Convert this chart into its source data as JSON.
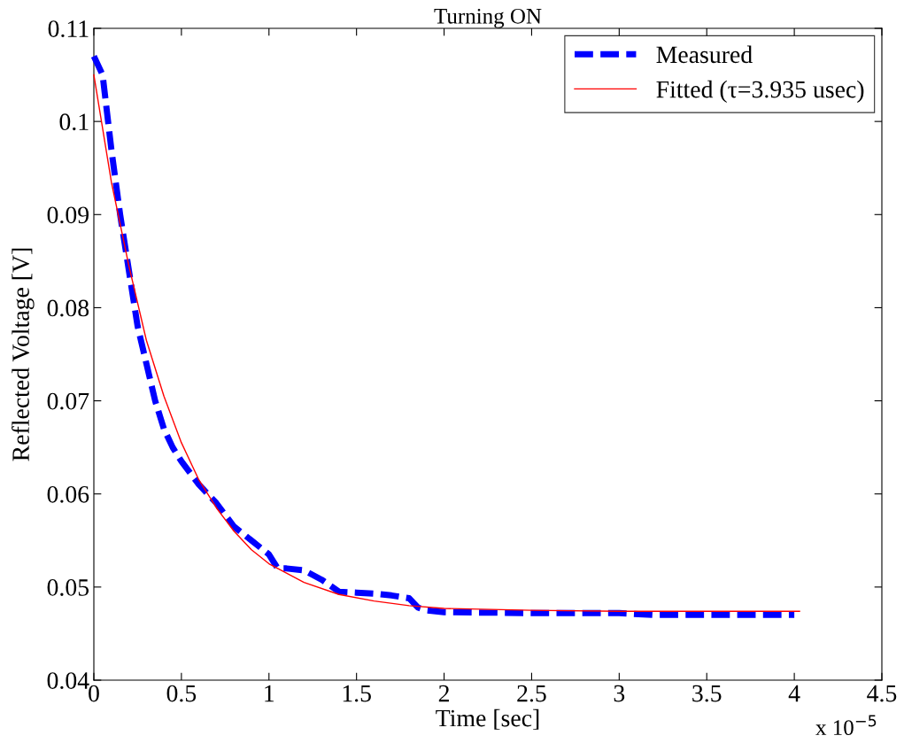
{
  "chart_data": {
    "type": "line",
    "title": "Turning ON",
    "xlabel": "Time [sec]",
    "ylabel": "Reflected Voltage [V]",
    "annotations": [
      "x 10$^{−5}$"
    ],
    "xlim": [
      0,
      4.5
    ],
    "xticks": [
      0,
      0.5,
      1,
      1.5,
      2,
      2.5,
      3,
      3.5,
      4,
      4.5
    ],
    "ylim": [
      0.04,
      0.11
    ],
    "yticks": [
      0.04,
      0.05,
      0.06,
      0.07,
      0.08,
      0.09,
      0.1,
      0.11
    ],
    "grid": false,
    "legend": "top right",
    "series": [
      {
        "name": "Measured",
        "color": "#0000ff",
        "line_style": "dashed",
        "x": [
          0,
          0.05,
          0.1,
          0.15,
          0.2,
          0.25,
          0.3,
          0.35,
          0.4,
          0.45,
          0.5,
          0.6,
          0.7,
          0.8,
          0.9,
          1.0,
          1.05,
          1.1,
          1.2,
          1.3,
          1.4,
          1.5,
          1.6,
          1.7,
          1.8,
          1.85,
          1.9,
          2.0,
          2.5,
          3.0,
          3.2,
          3.5,
          4.0
        ],
        "values": [
          0.107,
          0.105,
          0.097,
          0.09,
          0.084,
          0.078,
          0.074,
          0.07,
          0.067,
          0.065,
          0.0635,
          0.061,
          0.059,
          0.0565,
          0.055,
          0.0535,
          0.052,
          0.052,
          0.0518,
          0.0508,
          0.0495,
          0.0494,
          0.0493,
          0.0491,
          0.0488,
          0.0478,
          0.0475,
          0.0473,
          0.0472,
          0.0472,
          0.047,
          0.047,
          0.047
        ]
      },
      {
        "name": "Fitted (τ=3.935 usec)",
        "color": "#ff0000",
        "line_style": "solid",
        "x": [
          0,
          0.1,
          0.2,
          0.3,
          0.4,
          0.5,
          0.6,
          0.7,
          0.8,
          0.9,
          1.0,
          1.2,
          1.4,
          1.6,
          1.8,
          2.0,
          2.5,
          3.0,
          4.03
        ],
        "values": [
          0.105,
          0.0935,
          0.0845,
          0.0765,
          0.0705,
          0.0655,
          0.0615,
          0.0585,
          0.056,
          0.054,
          0.0525,
          0.0505,
          0.0492,
          0.0485,
          0.048,
          0.0477,
          0.0475,
          0.0474,
          0.0474
        ]
      }
    ]
  }
}
